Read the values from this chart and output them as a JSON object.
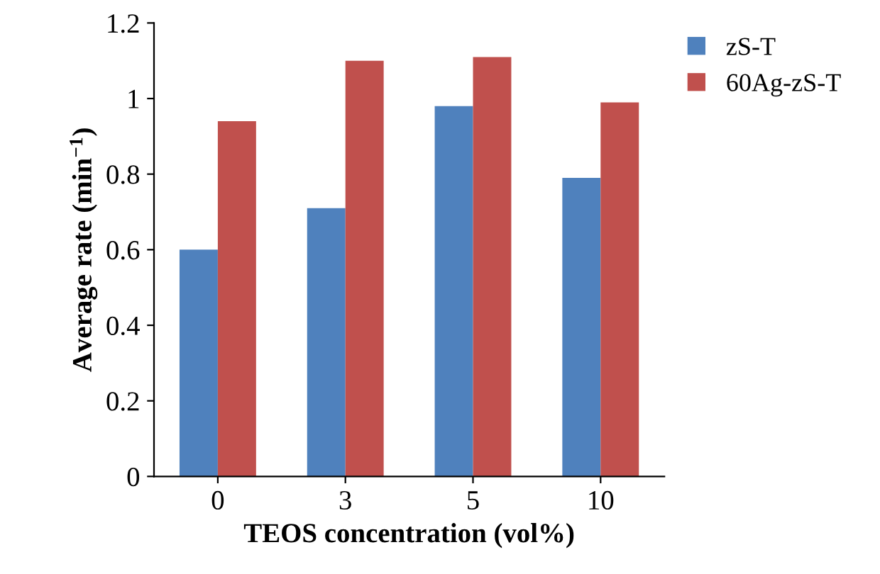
{
  "chart_data": {
    "type": "bar",
    "xlabel": "TEOS concentration (vol%)",
    "ylabel": "Average rate (min$^{−1}$)",
    "categories": [
      "0",
      "3",
      "5",
      "10"
    ],
    "series": [
      {
        "name": "zS-T",
        "color": "#4f81bd",
        "values": [
          0.6,
          0.71,
          0.98,
          0.79
        ]
      },
      {
        "name": "60Ag-zS-T",
        "color": "#c0504d",
        "values": [
          0.94,
          1.1,
          1.11,
          0.99
        ]
      }
    ],
    "ylim": [
      0,
      1.2
    ],
    "yticks": [
      0,
      0.2,
      0.4,
      0.6,
      0.8,
      1,
      1.2
    ],
    "grid": false,
    "legend": "top right"
  }
}
